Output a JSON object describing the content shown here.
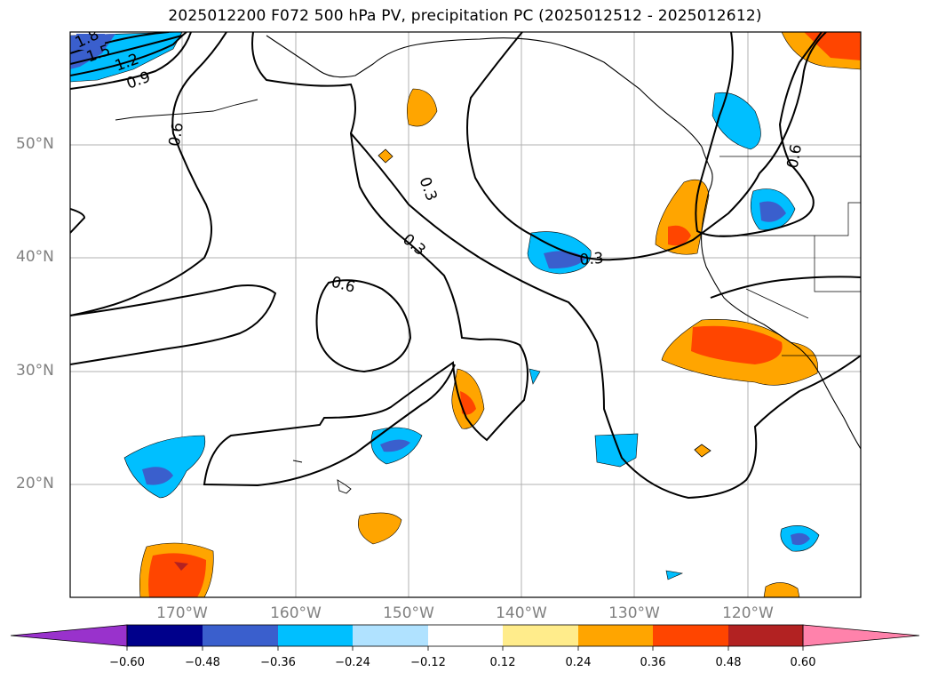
{
  "title": "2025012200 F072 500 hPa PV, precipitation PC (2025012512 - 2025012612)",
  "lat_labels": [
    "50°N",
    "40°N",
    "30°N",
    "20°N"
  ],
  "lon_labels": [
    "170°W",
    "160°W",
    "150°W",
    "140°W",
    "130°W",
    "120°W"
  ],
  "contour_labels": {
    "c1": "1.8",
    "c2": "1.5",
    "c3": "1.2",
    "c4": "0.9",
    "c5": "0.6",
    "c6": "0.3",
    "c7": "0.3",
    "c8": "0.3",
    "c9": "0.6",
    "c10": "0.6"
  },
  "colorbar": {
    "ticks": [
      "−0.60",
      "−0.48",
      "−0.36",
      "−0.24",
      "−0.12",
      "0.12",
      "0.24",
      "0.36",
      "0.48",
      "0.60"
    ],
    "colors": [
      "#9932cc",
      "#00008b",
      "#3a5fcd",
      "#00bfff",
      "#b0e2ff",
      "#ffffff",
      "#ffec8b",
      "#ffa500",
      "#ff4500",
      "#b22222",
      "#ff82ab"
    ]
  },
  "colors": {
    "neg_light": "#b0e2ff",
    "neg_mid": "#00bfff",
    "neg_strong": "#3a5fcd",
    "pos_light": "#ffec8b",
    "pos_mid": "#ffa500",
    "pos_strong": "#ff4500",
    "pos_max": "#b22222",
    "grid": "#b0b0b0"
  }
}
